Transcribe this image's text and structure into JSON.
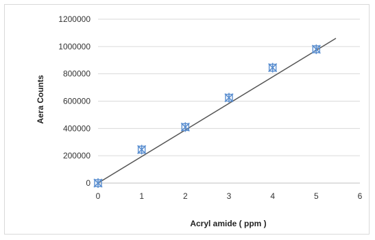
{
  "chart_data": {
    "type": "scatter",
    "title": "",
    "xlabel": "Acryl amide ( ppm )",
    "ylabel": "Aera  Counts",
    "xlim": [
      0,
      6
    ],
    "ylim": [
      0,
      1200000
    ],
    "x_ticks": [
      "0",
      "1",
      "2",
      "3",
      "4",
      "5",
      "6"
    ],
    "y_ticks": [
      "0",
      "200000",
      "400000",
      "600000",
      "800000",
      "1000000",
      "1200000"
    ],
    "grid": "horizontal",
    "legend": "none",
    "series": [
      {
        "marker": "asterisk-square",
        "color": "#5b8fd0",
        "x": [
          0,
          1,
          2,
          3,
          4,
          5
        ],
        "y": [
          0,
          245000,
          410000,
          625000,
          845000,
          980000
        ]
      }
    ],
    "trendline": {
      "type": "linear",
      "color": "#555555",
      "x": [
        0,
        5.45
      ],
      "y": [
        0,
        1060000
      ]
    }
  }
}
